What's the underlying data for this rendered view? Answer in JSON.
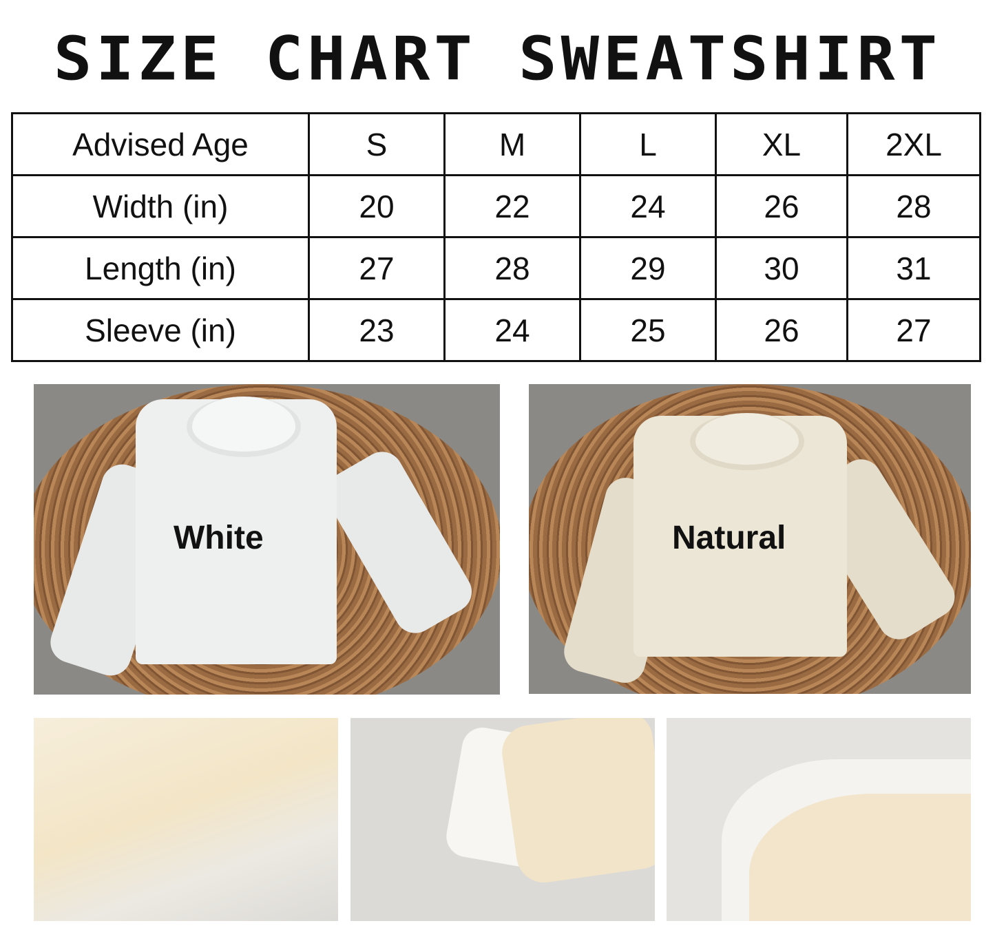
{
  "title": "SIZE CHART SWEATSHIRT",
  "size_table": {
    "header": [
      "Advised Age",
      "S",
      "M",
      "L",
      "XL",
      "2XL"
    ],
    "rows": [
      [
        "Width (in)",
        "20",
        "22",
        "24",
        "26",
        "28"
      ],
      [
        "Length (in)",
        "27",
        "28",
        "29",
        "30",
        "31"
      ],
      [
        "Sleeve (in)",
        "23",
        "24",
        "25",
        "26",
        "27"
      ]
    ]
  },
  "photos": [
    {
      "color_label": "White",
      "shirt_color": "#eef0f0"
    },
    {
      "color_label": "Natural",
      "shirt_color": "#ece6d6"
    }
  ],
  "colors": {
    "white": "#eef0f0",
    "natural": "#ece6d6",
    "rug": "#9a6b42",
    "background": "#8a8985"
  }
}
